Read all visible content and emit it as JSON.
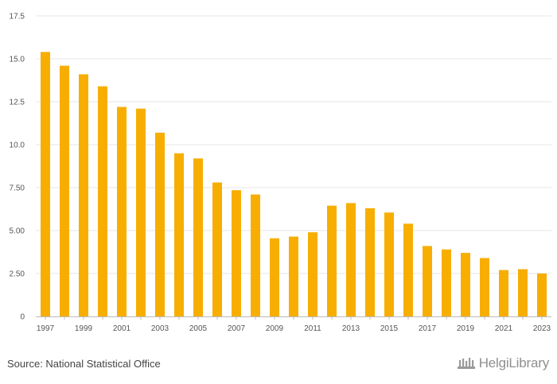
{
  "chart_data": {
    "type": "bar",
    "categories": [
      "1997",
      "1998",
      "1999",
      "2000",
      "2001",
      "2002",
      "2003",
      "2004",
      "2005",
      "2006",
      "2007",
      "2008",
      "2009",
      "2010",
      "2011",
      "2012",
      "2013",
      "2014",
      "2015",
      "2016",
      "2017",
      "2018",
      "2019",
      "2020",
      "2021",
      "2022",
      "2023"
    ],
    "values": [
      15.4,
      14.6,
      14.1,
      13.4,
      12.2,
      12.1,
      10.7,
      9.5,
      9.2,
      7.8,
      7.35,
      7.1,
      4.55,
      4.65,
      4.9,
      6.45,
      6.6,
      6.3,
      6.05,
      5.4,
      4.1,
      3.9,
      3.7,
      3.4,
      2.7,
      2.75,
      2.5
    ],
    "x_tick_labels": [
      "1997",
      "1999",
      "2001",
      "2003",
      "2005",
      "2007",
      "2009",
      "2011",
      "2013",
      "2015",
      "2017",
      "2019",
      "2021",
      "2023"
    ],
    "y_ticks": [
      0,
      2.5,
      5,
      7.5,
      10,
      12.5,
      15,
      17.5
    ],
    "y_tick_labels": [
      "0",
      "2.50",
      "5.00",
      "7.50",
      "10.0",
      "12.5",
      "15.0",
      "17.5"
    ],
    "ylim": [
      0,
      17.5
    ],
    "title": "",
    "xlabel": "",
    "ylabel": "",
    "grid": true,
    "bar_color": "#f7ae00"
  },
  "footer": {
    "source": "Source: National Statistical Office",
    "brand": "HelgiLibrary"
  }
}
